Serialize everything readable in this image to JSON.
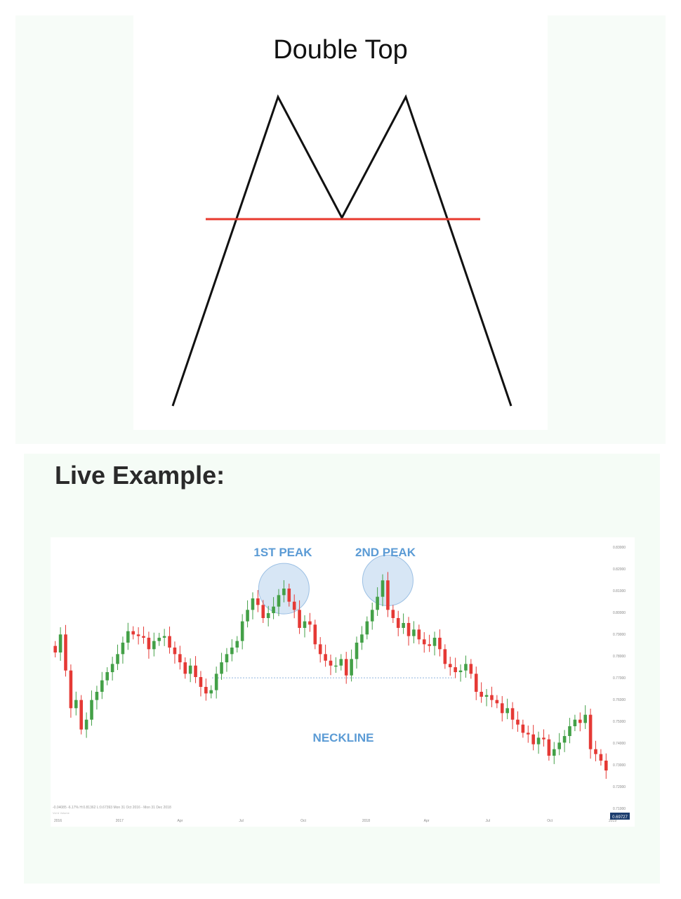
{
  "diagram": {
    "title": "Double Top",
    "line_color": "#111111",
    "neckline_color": "#e83a2e"
  },
  "live_heading": "Live Example:",
  "chart_data": {
    "type": "candlestick",
    "annotations": {
      "first_peak": "1ST PEAK",
      "second_peak": "2ND PEAK",
      "neckline": "NECKLINE"
    },
    "annotation_color": "#5b9bd5",
    "up_color": "#43a047",
    "down_color": "#e53935",
    "ylim": [
      0.67,
      0.835
    ],
    "y_ticks": [
      "0.83000",
      "0.82000",
      "0.81000",
      "0.80000",
      "0.79000",
      "0.78000",
      "0.77000",
      "0.76000",
      "0.75000",
      "0.74000",
      "0.73000",
      "0.72000",
      "0.71000"
    ],
    "x_ticks": [
      "2016",
      "2017",
      "Apr",
      "Jul",
      "Oct",
      "2018",
      "Apr",
      "Jul",
      "Oct",
      "2019"
    ],
    "neckline_value": 0.7535,
    "last_price": "0.69727",
    "status_line": "-0.04085 -6.17% H:0.81362 L:0.67393 Mon 31 Oct 2016 - Mon 31 Dec 2018",
    "volume_label": "Vol & Volume",
    "closes": [
      0.769,
      0.78,
      0.758,
      0.735,
      0.74,
      0.722,
      0.728,
      0.74,
      0.745,
      0.752,
      0.757,
      0.762,
      0.768,
      0.775,
      0.782,
      0.78,
      0.779,
      0.778,
      0.771,
      0.776,
      0.778,
      0.779,
      0.772,
      0.768,
      0.763,
      0.756,
      0.761,
      0.754,
      0.748,
      0.744,
      0.746,
      0.756,
      0.763,
      0.768,
      0.772,
      0.776,
      0.788,
      0.795,
      0.802,
      0.798,
      0.79,
      0.793,
      0.797,
      0.804,
      0.808,
      0.8,
      0.795,
      0.784,
      0.788,
      0.786,
      0.774,
      0.768,
      0.764,
      0.761,
      0.761,
      0.765,
      0.755,
      0.765,
      0.775,
      0.78,
      0.788,
      0.795,
      0.803,
      0.813,
      0.795,
      0.79,
      0.784,
      0.787,
      0.779,
      0.783,
      0.777,
      0.774,
      0.773,
      0.778,
      0.771,
      0.762,
      0.76,
      0.757,
      0.758,
      0.762,
      0.756,
      0.745,
      0.742,
      0.743,
      0.74,
      0.738,
      0.732,
      0.735,
      0.728,
      0.725,
      0.72,
      0.719,
      0.713,
      0.717,
      0.716,
      0.706,
      0.71,
      0.714,
      0.718,
      0.724,
      0.728,
      0.726,
      0.731,
      0.71,
      0.707,
      0.703,
      0.697
    ]
  }
}
